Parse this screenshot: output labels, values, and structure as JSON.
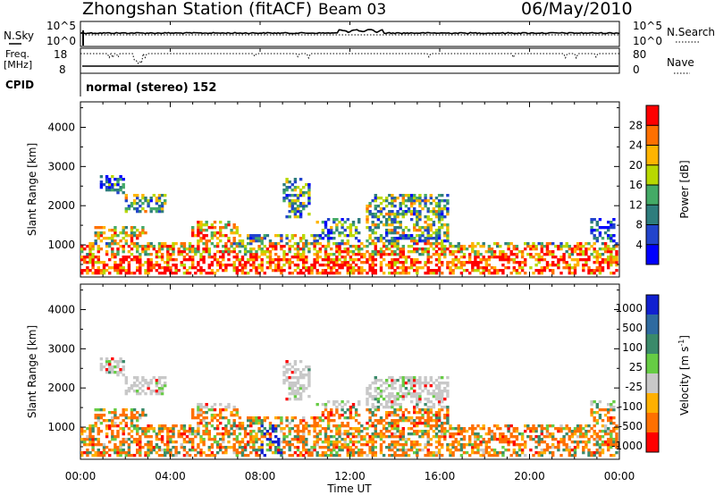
{
  "header": {
    "station": "Zhongshan Station (fitACF)",
    "beam": "Beam 03",
    "date": "06/May/2010",
    "cpid_mode": "normal (stereo) 152"
  },
  "labels": {
    "nsky": "N.Sky",
    "nsearch": "N.Search",
    "freq": "Freq.",
    "freq_unit": "[MHz]",
    "cpid": "CPID",
    "nave": "Nave",
    "ylabel": "Slant Range [km]",
    "xlabel": "Time UT",
    "power_label": "Power [dB]",
    "velocity_label": "Velocity [m s",
    "velocity_exp": "-1",
    "velocity_close": "]"
  },
  "chart_data": [
    {
      "type": "heatmap",
      "name": "power",
      "xlabel": "Time UT",
      "ylabel": "Slant Range [km]",
      "xlim": [
        0,
        24
      ],
      "ylim": [
        180,
        4650
      ],
      "x_ticks": [
        "00:00",
        "04:00",
        "08:00",
        "12:00",
        "16:00",
        "20:00",
        "00:00"
      ],
      "y_ticks": [
        1000,
        2000,
        3000,
        4000
      ],
      "colorbar": {
        "label": "Power [dB]",
        "ticks": [
          "4",
          "8",
          "12",
          "16",
          "20",
          "24",
          "28"
        ],
        "range": [
          0,
          32
        ]
      },
      "colors": [
        "#0000ff",
        "#2244cc",
        "#2e7d7d",
        "#44aa66",
        "#b8d800",
        "#ffb400",
        "#ff7000",
        "#ff0000"
      ]
    },
    {
      "type": "heatmap",
      "name": "velocity",
      "xlabel": "Time UT",
      "ylabel": "Slant Range [km]",
      "xlim": [
        0,
        24
      ],
      "ylim": [
        180,
        4650
      ],
      "x_ticks": [
        "00:00",
        "04:00",
        "08:00",
        "12:00",
        "16:00",
        "20:00",
        "00:00"
      ],
      "y_ticks": [
        1000,
        2000,
        3000,
        4000
      ],
      "colorbar": {
        "label": "Velocity [m s-1]",
        "ticks": [
          "1000",
          "500",
          "100",
          "25",
          "-25",
          "-100",
          "-500",
          "-1000"
        ]
      },
      "colors": [
        "#1020d0",
        "#2e6aa0",
        "#3a8a6a",
        "#66cc44",
        "#c8c8c8",
        "#ffb000",
        "#ff7000",
        "#ff0000"
      ]
    },
    {
      "type": "line",
      "name": "nsky-nsearch",
      "ylim_labels": [
        "10^5",
        "10^0"
      ]
    },
    {
      "type": "line",
      "name": "freq-nave",
      "freq_ticks": [
        "18",
        "8"
      ],
      "nave_ticks": [
        "80",
        "0"
      ]
    }
  ]
}
